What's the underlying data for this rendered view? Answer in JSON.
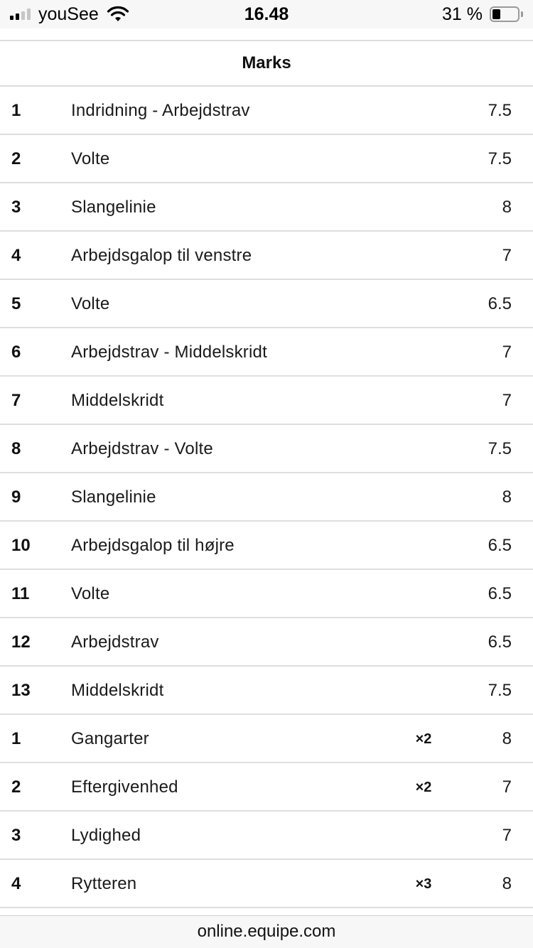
{
  "status_bar": {
    "carrier": "youSee",
    "time": "16.48",
    "battery_percent": "31 %",
    "battery_level": 0.31,
    "signal_bars_active": 2,
    "signal_bars_total": 4
  },
  "page": {
    "title": "Marks"
  },
  "rows": [
    {
      "num": "1",
      "label": "Indridning - Arbejdstrav",
      "coef": "",
      "score": "7.5"
    },
    {
      "num": "2",
      "label": "Volte",
      "coef": "",
      "score": "7.5"
    },
    {
      "num": "3",
      "label": "Slangelinie",
      "coef": "",
      "score": "8"
    },
    {
      "num": "4",
      "label": "Arbejdsgalop til venstre",
      "coef": "",
      "score": "7"
    },
    {
      "num": "5",
      "label": "Volte",
      "coef": "",
      "score": "6.5"
    },
    {
      "num": "6",
      "label": "Arbejdstrav - Middelskridt",
      "coef": "",
      "score": "7"
    },
    {
      "num": "7",
      "label": "Middelskridt",
      "coef": "",
      "score": "7"
    },
    {
      "num": "8",
      "label": "Arbejdstrav - Volte",
      "coef": "",
      "score": "7.5"
    },
    {
      "num": "9",
      "label": "Slangelinie",
      "coef": "",
      "score": "8"
    },
    {
      "num": "10",
      "label": "Arbejdsgalop til højre",
      "coef": "",
      "score": "6.5"
    },
    {
      "num": "11",
      "label": "Volte",
      "coef": "",
      "score": "6.5"
    },
    {
      "num": "12",
      "label": "Arbejdstrav",
      "coef": "",
      "score": "6.5"
    },
    {
      "num": "13",
      "label": "Middelskridt",
      "coef": "",
      "score": "7.5"
    },
    {
      "num": "1",
      "label": "Gangarter",
      "coef": "×2",
      "score": "8"
    },
    {
      "num": "2",
      "label": "Eftergivenhed",
      "coef": "×2",
      "score": "7"
    },
    {
      "num": "3",
      "label": "Lydighed",
      "coef": "",
      "score": "7"
    },
    {
      "num": "4",
      "label": "Rytteren",
      "coef": "×3",
      "score": "8"
    }
  ],
  "browser": {
    "url": "online.equipe.com"
  }
}
